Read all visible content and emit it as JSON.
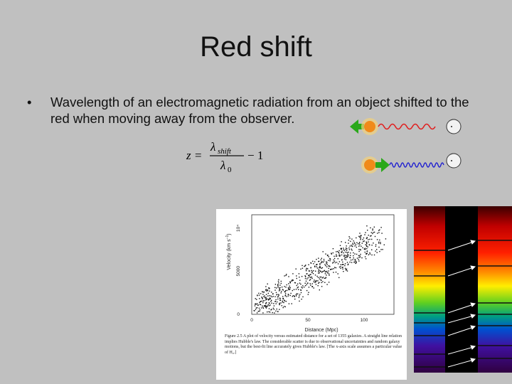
{
  "slide": {
    "title": "Red shift",
    "bullet_mark": "•",
    "bullet_text": "Wavelength of an electromagnetic radiation from an object shifted to the red when moving away from the observer."
  },
  "equation": {
    "lhs": "z =",
    "numerator": "λ",
    "numerator_sub": "shift",
    "denominator": "λ",
    "denominator_sub": "0",
    "rhs": "− 1"
  },
  "plot": {
    "ylabel": "Velocity (km s",
    "ylabel_sup": "−1",
    "ylabel_end": ")",
    "xlabel": "Distance (Mpc)",
    "yticks": [
      "0",
      "5000",
      "10⁴"
    ],
    "xticks": [
      "0",
      "50",
      "100"
    ],
    "caption": "Figure 2.5   A plot of velocity versus estimated distance for a set of 1355 galaxies. A straight line relation implies Hubble's law. The considerable scatter is due to observational uncertainties and random galaxy motions, but the best-fit line accurately gives Hubble's law. [The x-axis scale assumes a particular value of H₀.]"
  },
  "colors": {
    "background": "#c0c0c0",
    "red_wave": "#e02020",
    "blue_wave": "#2020d0",
    "arrow_green": "#2aa81a"
  }
}
